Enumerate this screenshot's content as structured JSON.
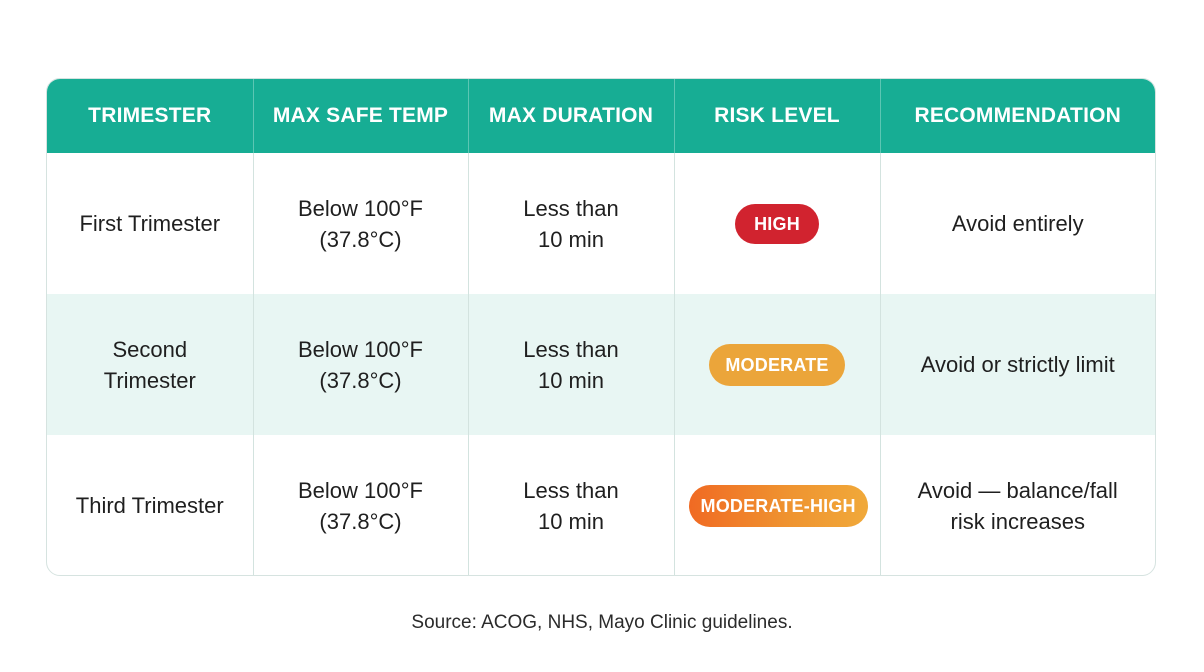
{
  "table": {
    "headers": [
      "TRIMESTER",
      "MAX SAFE TEMP",
      "MAX DURATION",
      "RISK LEVEL",
      "RECOMMENDATION"
    ],
    "rows": [
      {
        "trimester": "First Trimester",
        "max_safe_temp": [
          "Below 100°F",
          "(37.8°C)"
        ],
        "max_duration": [
          "Less than",
          "10 min"
        ],
        "risk_level": "HIGH",
        "recommendation": [
          "Avoid entirely"
        ]
      },
      {
        "trimester": [
          "Second",
          "Trimester"
        ],
        "max_safe_temp": [
          "Below 100°F",
          "(37.8°C)"
        ],
        "max_duration": [
          "Less than",
          "10 min"
        ],
        "risk_level": "MODERATE",
        "recommendation": [
          "Avoid or strictly limit"
        ]
      },
      {
        "trimester": "Third Trimester",
        "max_safe_temp": [
          "Below 100°F",
          "(37.8°C)"
        ],
        "max_duration": [
          "Less than",
          "10 min"
        ],
        "risk_level": "MODERATE-HIGH",
        "recommendation": [
          "Avoid — balance/fall",
          "risk increases"
        ]
      }
    ]
  },
  "risk_colors": {
    "HIGH": "#d1232f",
    "MODERATE": "#eba53a",
    "MODERATE-HIGH": "#f06a23"
  },
  "header_color": "#17ad94",
  "footer": {
    "source": "Source: ACOG, NHS, Mayo Clinic guidelines."
  }
}
